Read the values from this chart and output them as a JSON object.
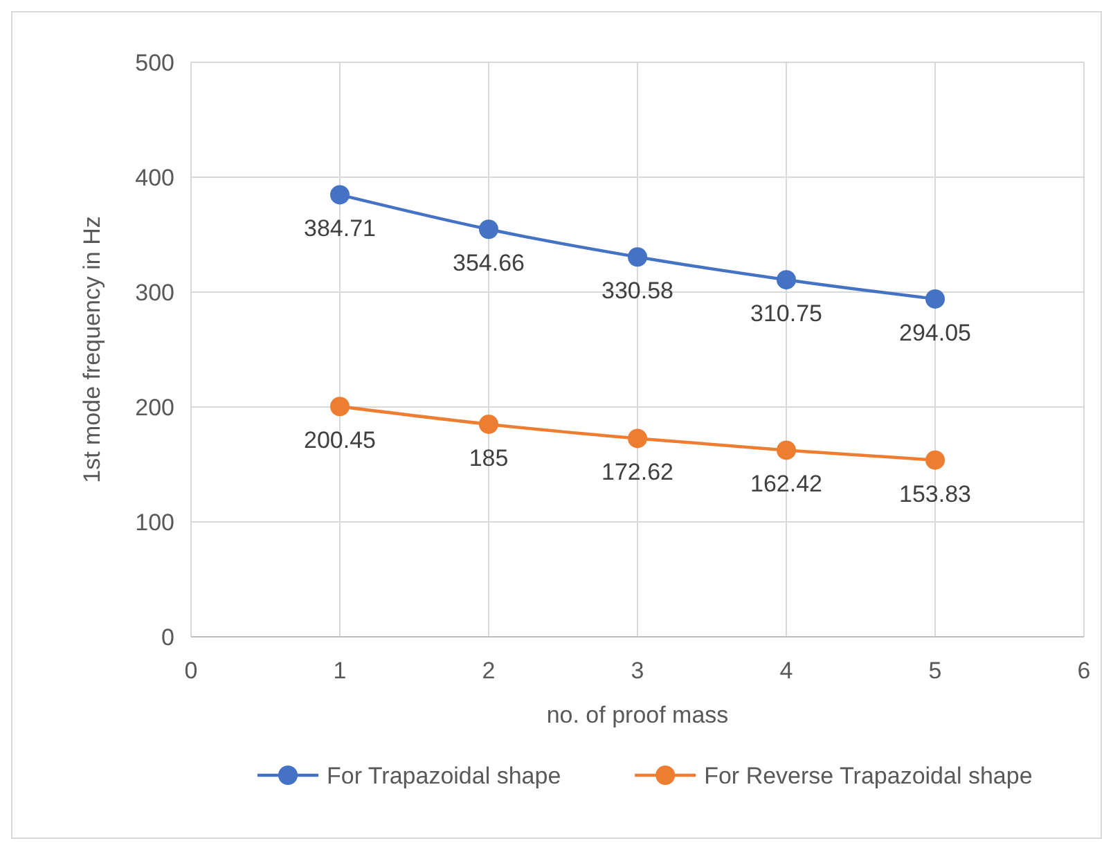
{
  "chart_data": {
    "type": "line",
    "xlabel": "no. of proof mass",
    "ylabel": "1st mode frequency in Hz",
    "x": [
      1,
      2,
      3,
      4,
      5
    ],
    "series": [
      {
        "name": "For Trapazoidal shape",
        "color": "#4472c4",
        "values": [
          384.71,
          354.66,
          330.58,
          310.75,
          294.05
        ]
      },
      {
        "name": "For Reverse Trapazoidal shape",
        "color": "#ed7d31",
        "values": [
          200.45,
          185,
          172.62,
          162.42,
          153.83
        ]
      }
    ],
    "xlim": [
      0,
      6
    ],
    "xticks": [
      0,
      1,
      2,
      3,
      4,
      5,
      6
    ],
    "ylim": [
      0,
      500
    ],
    "yticks": [
      0,
      100,
      200,
      300,
      400,
      500
    ],
    "grid": true,
    "legend": "bottom",
    "marker": "circle",
    "line_style": "solid",
    "data_labels": true
  }
}
